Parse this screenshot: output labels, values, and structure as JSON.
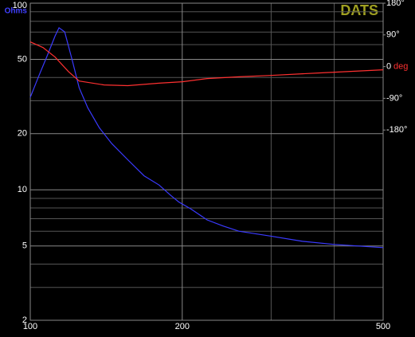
{
  "chart_data": {
    "type": "line",
    "title": "DATS",
    "ylabel": "Ohms",
    "y2label": "deg",
    "xscale": "log",
    "yscale": "log",
    "xlim": [
      100,
      500
    ],
    "xticks": [
      100,
      200,
      500
    ],
    "xminor": [
      300,
      400
    ],
    "ylim": [
      2,
      100
    ],
    "yticks": [
      2,
      5,
      10,
      20,
      50,
      100
    ],
    "yminor": [
      3,
      4,
      6,
      7,
      8,
      9,
      30,
      40,
      60,
      70,
      80,
      90
    ],
    "y2lim": [
      -720,
      180
    ],
    "y2ticks": [
      {
        "value": 180,
        "label": "180°"
      },
      {
        "value": 90,
        "label": "90°"
      },
      {
        "value": 0,
        "label": "0"
      },
      {
        "value": -90,
        "label": "-90°"
      },
      {
        "value": -180,
        "label": "-180°"
      }
    ],
    "grid": true,
    "series": [
      {
        "color": "#3a3aff",
        "x": [
          100,
          104,
          108,
          112,
          114,
          117,
          121,
          125,
          130,
          137,
          145,
          156,
          168,
          180,
          190,
          197,
          208,
          224,
          241,
          259,
          299,
          346,
          400,
          500
        ],
        "values": [
          31.3,
          40.8,
          52.2,
          66.8,
          73.8,
          70.2,
          49.8,
          35.2,
          27.5,
          21.5,
          17.7,
          14.5,
          11.9,
          10.6,
          9.3,
          8.6,
          7.9,
          6.9,
          6.4,
          6.0,
          5.65,
          5.3,
          5.1,
          4.9
        ]
      },
      {
        "color": "#ff3030",
        "axis": "y2",
        "x": [
          100,
          106,
          112,
          119,
          125,
          140,
          156,
          180,
          200,
          224,
          259,
          299,
          372,
          500
        ],
        "values": [
          70,
          54,
          27,
          -14,
          -41,
          -52,
          -54,
          -47,
          -43,
          -34,
          -29,
          -25,
          -18,
          -9
        ]
      }
    ]
  }
}
